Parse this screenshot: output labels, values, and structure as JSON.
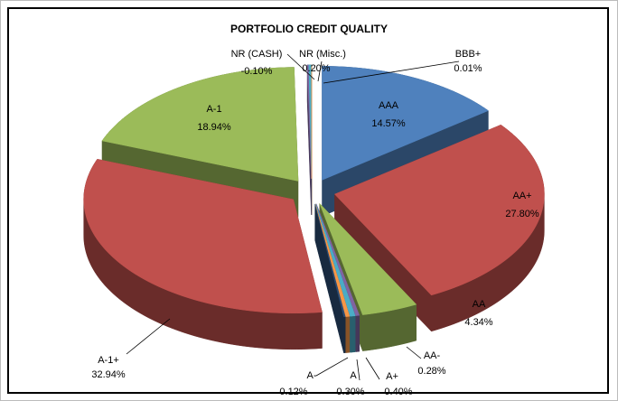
{
  "chart_data": {
    "type": "pie",
    "title": "PORTFOLIO CREDIT QUALITY",
    "categories": [
      "AAA",
      "AA+",
      "AA",
      "AA-",
      "A+",
      "A",
      "A-",
      "A-1+",
      "A-1",
      "NR (CASH)",
      "NR (Misc.)",
      "BBB+"
    ],
    "values": [
      14.57,
      27.8,
      4.34,
      0.28,
      0.4,
      0.3,
      0.12,
      32.94,
      18.94,
      -0.1,
      0.2,
      0.01
    ],
    "value_labels": [
      "14.57%",
      "27.80%",
      "4.34%",
      "0.28%",
      "0.40%",
      "0.30%",
      "0.12%",
      "32.94%",
      "18.94%",
      "-0.10%",
      "0.20%",
      "0.01%"
    ],
    "colors": [
      "#4f81bd",
      "#c0504d",
      "#9bbb59",
      "#8064a2",
      "#4bacc6",
      "#f79646",
      "#2c4d75",
      "#c0504d",
      "#9bbb59",
      "#8064a2",
      "#4bacc6",
      "#f79646"
    ]
  }
}
